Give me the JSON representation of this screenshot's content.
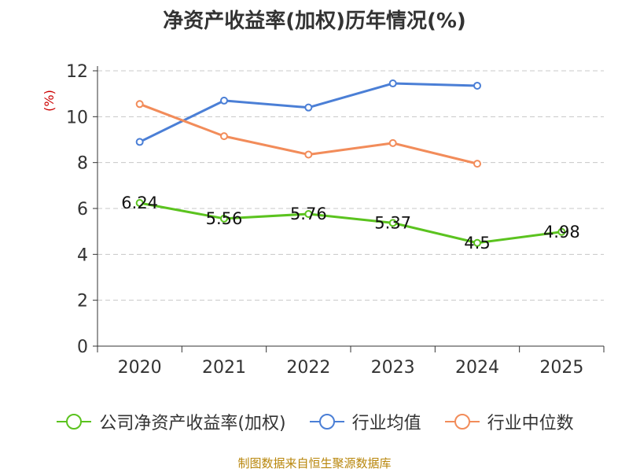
{
  "chart_data": {
    "type": "line",
    "title": "净资产收益率(加权)历年情况(%)",
    "ylabel": "(%)",
    "xlabel": "",
    "ylim": [
      0,
      12
    ],
    "yticks": [
      0,
      2,
      4,
      6,
      8,
      10,
      12
    ],
    "categories": [
      "2020",
      "2021",
      "2022",
      "2023",
      "2024",
      "2025"
    ],
    "grid": true,
    "legend_position": "bottom",
    "series": [
      {
        "name": "公司净资产收益率(加权)",
        "color": "#5bc31f",
        "values": [
          6.24,
          5.56,
          5.76,
          5.37,
          4.5,
          4.98
        ],
        "labels": [
          "6.24",
          "5.56",
          "5.76",
          "5.37",
          "4.5",
          "4.98"
        ]
      },
      {
        "name": "行业均值",
        "color": "#4b7fd6",
        "values": [
          8.9,
          10.7,
          10.4,
          11.45,
          11.35,
          null
        ]
      },
      {
        "name": "行业中位数",
        "color": "#f28c5a",
        "values": [
          10.55,
          9.15,
          8.35,
          8.85,
          7.95,
          null
        ]
      }
    ],
    "source": "制图数据来自恒生聚源数据库"
  }
}
